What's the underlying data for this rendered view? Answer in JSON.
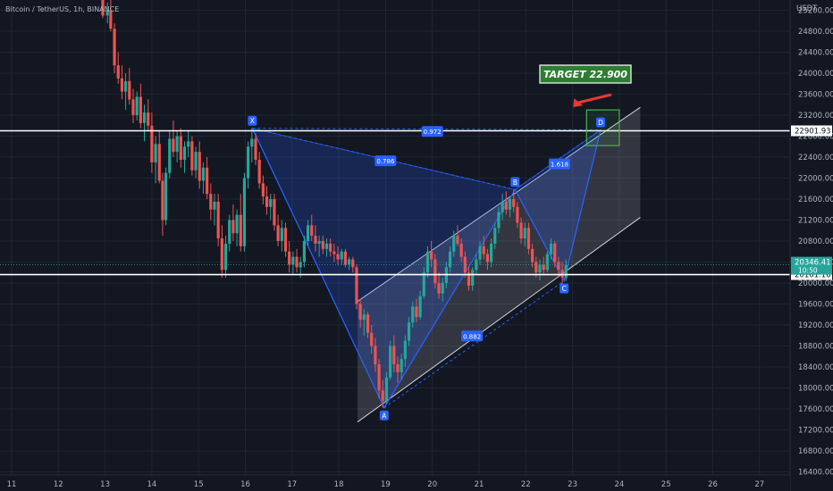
{
  "header": {
    "title": "Bitcoin / TetherUS, 1h, BINANCE"
  },
  "chart_data": {
    "type": "candlestick",
    "title": "Bitcoin / TetherUS, 1h, BINANCE",
    "y_unit": "USDT",
    "ylim": [
      16400,
      25400
    ],
    "xlim": [
      11,
      27.6
    ],
    "y_ticks": [
      "25200.00",
      "24800.00",
      "24400.00",
      "24000.00",
      "23600.00",
      "23200.00",
      "22800.00",
      "22400.00",
      "22000.00",
      "21600.00",
      "21200.00",
      "20800.00",
      "20400.00",
      "20000.00",
      "19600.00",
      "19200.00",
      "18800.00",
      "18400.00",
      "18000.00",
      "17600.00",
      "17200.00",
      "16800.00",
      "16400.00"
    ],
    "x_ticks": [
      "11",
      "12",
      "13",
      "14",
      "15",
      "16",
      "17",
      "18",
      "19",
      "20",
      "21",
      "22",
      "23",
      "24",
      "25",
      "26",
      "27"
    ],
    "price_lines": [
      {
        "value": 22901.93,
        "label": "22901.93",
        "color": "#ffffff"
      },
      {
        "value": 20161.16,
        "label": "20161.16",
        "color": "#ffffff"
      }
    ],
    "last_price": {
      "value": 20346.41,
      "label": "20346.41",
      "countdown": "10:50",
      "color": "#26a69a"
    },
    "harmonic_pattern": {
      "points": [
        {
          "name": "X",
          "x": 16.15,
          "price": 22950
        },
        {
          "name": "A",
          "x": 18.97,
          "price": 17620
        },
        {
          "name": "B",
          "x": 21.77,
          "price": 21780
        },
        {
          "name": "C",
          "x": 22.82,
          "price": 20040
        },
        {
          "name": "D",
          "x": 23.6,
          "price": 22920
        }
      ],
      "ratios": [
        {
          "label": "0.786",
          "x": 19.0,
          "price": 22330
        },
        {
          "label": "1.618",
          "x": 22.72,
          "price": 22270
        },
        {
          "label": "0.882",
          "x": 20.85,
          "price": 18990
        },
        {
          "label": "0.972",
          "x": 20.0,
          "price": 22890
        }
      ]
    },
    "channel": {
      "lower": [
        [
          18.4,
          17350
        ],
        [
          24.45,
          21250
        ]
      ],
      "upper": [
        [
          18.4,
          19650
        ],
        [
          24.45,
          23350
        ]
      ]
    },
    "target_box": {
      "x1": 23.3,
      "x2": 24.0,
      "price_top": 23300,
      "price_bottom": 22620
    },
    "annotation": {
      "text": "TARGET 22.900",
      "x": 22.3,
      "price": 24000
    },
    "candles": [
      [
        12.95,
        25400,
        25400,
        25050,
        25100
      ],
      [
        13.05,
        25100,
        25350,
        24950,
        25200
      ],
      [
        13.12,
        25200,
        25400,
        24800,
        24850
      ],
      [
        13.2,
        24850,
        24950,
        24000,
        24150
      ],
      [
        13.28,
        24150,
        24400,
        23800,
        23900
      ],
      [
        13.36,
        23900,
        24150,
        23500,
        23650
      ],
      [
        13.44,
        23650,
        24000,
        23300,
        23850
      ],
      [
        13.52,
        23850,
        24100,
        23400,
        23500
      ],
      [
        13.6,
        23500,
        23700,
        23050,
        23200
      ],
      [
        13.68,
        23200,
        23650,
        23100,
        23550
      ],
      [
        13.76,
        23550,
        23800,
        22950,
        23050
      ],
      [
        13.84,
        23050,
        23400,
        22700,
        23250
      ],
      [
        13.92,
        23250,
        23500,
        22900,
        23000
      ],
      [
        14.0,
        23000,
        23250,
        22100,
        22300
      ],
      [
        14.08,
        22300,
        22800,
        21900,
        22650
      ],
      [
        14.16,
        22650,
        22900,
        21900,
        21950
      ],
      [
        14.23,
        21950,
        22100,
        20900,
        21200
      ],
      [
        14.3,
        21200,
        22200,
        21100,
        22100
      ],
      [
        14.38,
        22100,
        22900,
        22000,
        22750
      ],
      [
        14.46,
        22750,
        23100,
        22400,
        22500
      ],
      [
        14.54,
        22500,
        22900,
        22300,
        22800
      ],
      [
        14.62,
        22800,
        22950,
        22200,
        22350
      ],
      [
        14.7,
        22350,
        22700,
        22100,
        22600
      ],
      [
        14.78,
        22600,
        22900,
        22400,
        22700
      ],
      [
        14.86,
        22700,
        22800,
        22050,
        22150
      ],
      [
        14.94,
        22150,
        22600,
        22000,
        22500
      ],
      [
        15.02,
        22500,
        22700,
        21800,
        21950
      ],
      [
        15.1,
        21950,
        22300,
        21700,
        22200
      ],
      [
        15.18,
        22200,
        22400,
        21600,
        21700
      ],
      [
        15.26,
        21700,
        21900,
        21200,
        21400
      ],
      [
        15.34,
        21400,
        21700,
        21100,
        21550
      ],
      [
        15.42,
        21550,
        21700,
        20700,
        20850
      ],
      [
        15.5,
        20850,
        21100,
        20100,
        20250
      ],
      [
        15.58,
        20250,
        20900,
        20100,
        20750
      ],
      [
        15.66,
        20750,
        21300,
        20600,
        21200
      ],
      [
        15.74,
        21200,
        21500,
        20800,
        20950
      ],
      [
        15.82,
        20950,
        21400,
        20700,
        21300
      ],
      [
        15.9,
        21300,
        21700,
        20600,
        20700
      ],
      [
        15.98,
        20700,
        22100,
        20600,
        22000
      ],
      [
        16.06,
        22000,
        22700,
        21800,
        22600
      ],
      [
        16.14,
        22600,
        22950,
        22300,
        22750
      ],
      [
        16.22,
        22750,
        22850,
        22250,
        22350
      ],
      [
        16.3,
        22350,
        22500,
        21800,
        21900
      ],
      [
        16.38,
        21900,
        22050,
        21500,
        21650
      ],
      [
        16.46,
        21650,
        21850,
        21300,
        21450
      ],
      [
        16.54,
        21450,
        21700,
        21200,
        21600
      ],
      [
        16.62,
        21600,
        21700,
        21000,
        21100
      ],
      [
        16.7,
        21100,
        21300,
        20700,
        20800
      ],
      [
        16.78,
        20800,
        21200,
        20600,
        21050
      ],
      [
        16.86,
        21050,
        21150,
        20500,
        20600
      ],
      [
        16.94,
        20600,
        20800,
        20200,
        20350
      ],
      [
        17.02,
        20350,
        20600,
        20150,
        20500
      ],
      [
        17.1,
        20500,
        20650,
        20200,
        20300
      ],
      [
        17.18,
        20300,
        20500,
        20100,
        20400
      ],
      [
        17.26,
        20400,
        20900,
        20300,
        20800
      ],
      [
        17.34,
        20800,
        21200,
        20700,
        21100
      ],
      [
        17.42,
        21100,
        21300,
        20800,
        20900
      ],
      [
        17.5,
        20900,
        21100,
        20600,
        20750
      ],
      [
        17.58,
        20750,
        20900,
        20500,
        20800
      ],
      [
        17.66,
        20800,
        20900,
        20550,
        20650
      ],
      [
        17.74,
        20650,
        20850,
        20500,
        20750
      ],
      [
        17.82,
        20750,
        20850,
        20500,
        20600
      ],
      [
        17.9,
        20600,
        20750,
        20400,
        20550
      ],
      [
        17.98,
        20550,
        20700,
        20350,
        20450
      ],
      [
        18.06,
        20450,
        20650,
        20350,
        20600
      ],
      [
        18.14,
        20600,
        20650,
        20300,
        20350
      ],
      [
        18.22,
        20350,
        20500,
        20250,
        20450
      ],
      [
        18.3,
        20450,
        20500,
        20200,
        20300
      ],
      [
        18.38,
        20300,
        20350,
        19500,
        19600
      ],
      [
        18.46,
        19600,
        19700,
        19150,
        19300
      ],
      [
        18.54,
        19300,
        19500,
        19000,
        19400
      ],
      [
        18.62,
        19400,
        19450,
        18950,
        19050
      ],
      [
        18.7,
        19050,
        19200,
        18650,
        18800
      ],
      [
        18.78,
        18800,
        18950,
        18300,
        18450
      ],
      [
        18.86,
        18450,
        18550,
        17800,
        17950
      ],
      [
        18.94,
        17950,
        18150,
        17620,
        17750
      ],
      [
        19.02,
        17750,
        18300,
        17700,
        18200
      ],
      [
        19.1,
        18200,
        18900,
        18150,
        18800
      ],
      [
        19.18,
        18800,
        19000,
        18300,
        18450
      ],
      [
        19.26,
        18450,
        18600,
        18100,
        18300
      ],
      [
        19.34,
        18300,
        18650,
        18150,
        18550
      ],
      [
        19.42,
        18550,
        19000,
        18400,
        18900
      ],
      [
        19.5,
        18900,
        19350,
        18800,
        19250
      ],
      [
        19.58,
        19250,
        19650,
        19150,
        19550
      ],
      [
        19.66,
        19550,
        19700,
        19250,
        19350
      ],
      [
        19.74,
        19350,
        19850,
        19300,
        19750
      ],
      [
        19.82,
        19750,
        20300,
        19700,
        20200
      ],
      [
        19.9,
        20200,
        20700,
        20100,
        20600
      ],
      [
        19.98,
        20600,
        20800,
        20300,
        20450
      ],
      [
        20.06,
        20450,
        20550,
        19900,
        20000
      ],
      [
        20.14,
        20000,
        20200,
        19700,
        19800
      ],
      [
        20.22,
        19800,
        20100,
        19650,
        20000
      ],
      [
        20.3,
        20000,
        20400,
        19900,
        20300
      ],
      [
        20.38,
        20300,
        20700,
        20200,
        20600
      ],
      [
        20.46,
        20600,
        21000,
        20500,
        20900
      ],
      [
        20.54,
        20900,
        21100,
        20700,
        20750
      ],
      [
        20.62,
        20750,
        20850,
        20400,
        20500
      ],
      [
        20.7,
        20500,
        20600,
        20100,
        20200
      ],
      [
        20.78,
        20200,
        20300,
        19850,
        19950
      ],
      [
        20.86,
        19950,
        20300,
        19850,
        20250
      ],
      [
        20.94,
        20250,
        20550,
        20150,
        20450
      ],
      [
        21.02,
        20450,
        20800,
        20350,
        20700
      ],
      [
        21.1,
        20700,
        20900,
        20450,
        20550
      ],
      [
        21.18,
        20550,
        20650,
        20250,
        20400
      ],
      [
        21.26,
        20400,
        20850,
        20300,
        20750
      ],
      [
        21.34,
        20750,
        21150,
        20650,
        21050
      ],
      [
        21.42,
        21050,
        21450,
        20950,
        21350
      ],
      [
        21.5,
        21350,
        21700,
        21200,
        21550
      ],
      [
        21.58,
        21550,
        21750,
        21300,
        21400
      ],
      [
        21.66,
        21400,
        21650,
        21250,
        21600
      ],
      [
        21.74,
        21600,
        21780,
        21350,
        21450
      ],
      [
        21.82,
        21450,
        21550,
        21050,
        21150
      ],
      [
        21.9,
        21150,
        21250,
        20750,
        20850
      ],
      [
        21.98,
        20850,
        21150,
        20700,
        21050
      ],
      [
        22.06,
        21050,
        21150,
        20550,
        20650
      ],
      [
        22.14,
        20650,
        20750,
        20300,
        20400
      ],
      [
        22.22,
        20400,
        20500,
        20100,
        20200
      ],
      [
        22.3,
        20200,
        20450,
        20050,
        20350
      ],
      [
        22.38,
        20350,
        20500,
        20150,
        20250
      ],
      [
        22.46,
        20250,
        20600,
        20200,
        20550
      ],
      [
        22.54,
        20550,
        20850,
        20450,
        20750
      ],
      [
        22.62,
        20750,
        20800,
        20300,
        20400
      ],
      [
        22.7,
        20400,
        20500,
        20100,
        20250
      ],
      [
        22.78,
        20250,
        20400,
        19950,
        20100
      ],
      [
        22.86,
        20100,
        20450,
        20040,
        20346
      ]
    ]
  }
}
